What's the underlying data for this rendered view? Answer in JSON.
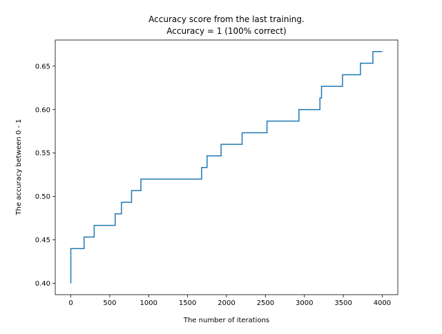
{
  "chart_data": {
    "type": "line",
    "title": "Accuracy score from the last training.",
    "subtitle": "Accuracy = 1 (100% correct)",
    "xlabel": "The number of iterations",
    "ylabel": "The accuracy between 0 - 1",
    "xlim": [
      -200,
      4200
    ],
    "ylim": [
      0.387,
      0.68
    ],
    "xticks": [
      0,
      500,
      1000,
      1500,
      2000,
      2500,
      3000,
      3500,
      4000
    ],
    "yticks": [
      0.4,
      0.45,
      0.5,
      0.55,
      0.6,
      0.65
    ],
    "xtick_labels": [
      "0",
      "500",
      "1000",
      "1500",
      "2000",
      "2500",
      "3000",
      "3500",
      "4000"
    ],
    "ytick_labels": [
      "0.40",
      "0.45",
      "0.50",
      "0.55",
      "0.60",
      "0.65"
    ],
    "grid": false,
    "step": true,
    "series": [
      {
        "color": "#1f77b4",
        "x": [
          0,
          0,
          170,
          170,
          300,
          300,
          570,
          570,
          650,
          650,
          780,
          780,
          900,
          900,
          1680,
          1680,
          1750,
          1750,
          1930,
          1930,
          2200,
          2200,
          2520,
          2520,
          2930,
          2930,
          3200,
          3200,
          3220,
          3220,
          3490,
          3490,
          3720,
          3720,
          3880,
          3880,
          4000
        ],
        "y": [
          0.4,
          0.44,
          0.44,
          0.4533,
          0.4533,
          0.4667,
          0.4667,
          0.48,
          0.48,
          0.4933,
          0.4933,
          0.5067,
          0.5067,
          0.52,
          0.52,
          0.5333,
          0.5333,
          0.5467,
          0.5467,
          0.56,
          0.56,
          0.5733,
          0.5733,
          0.5867,
          0.5867,
          0.6,
          0.6,
          0.6133,
          0.6133,
          0.6267,
          0.6267,
          0.64,
          0.64,
          0.6533,
          0.6533,
          0.6667,
          0.6667
        ]
      }
    ]
  }
}
